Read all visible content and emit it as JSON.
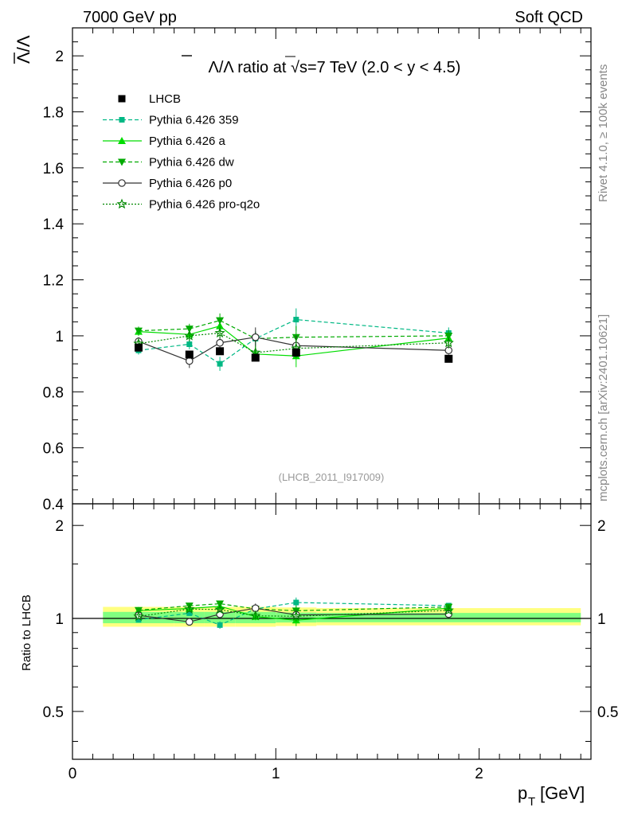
{
  "header": {
    "left": "7000 GeV pp",
    "right": "Soft QCD"
  },
  "side_labels": {
    "rivet": "Rivet 4.1.0, ≥ 100k events",
    "mcplots": "mcplots.cern.ch [arXiv:2401.10621]"
  },
  "colors": {
    "lhcb": "#000000",
    "p359": "#00b884",
    "pa": "#00dd00",
    "pdw": "#00aa00",
    "pp0": "#333333",
    "pq2o": "#008800",
    "band_outer": "#ffff80",
    "band_inner": "#80ff80"
  },
  "chart_data": [
    {
      "type": "line",
      "title": "Λ̅/Λ ratio at √s=7 TeV (2.0 < y < 4.5)",
      "title_parts": {
        "lambdabar": "Λ",
        "slash_lambda": "/Λ ratio at ",
        "sqrt": "√",
        "rest": "s=7 TeV (2.0 < y < 4.5)"
      },
      "ylabel": "Λ̅/Λ",
      "ylabel_parts": {
        "num": "Λ",
        "rest": "/Λ"
      },
      "xlabel": "p_T [GeV]",
      "xlim": [
        0,
        2.55
      ],
      "ylim": [
        0.4,
        2.1
      ],
      "yticks": [
        0.4,
        0.6,
        0.8,
        1,
        1.2,
        1.4,
        1.6,
        1.8,
        2
      ],
      "ytick_labels": [
        "0.4",
        "0.6",
        "0.8",
        "1",
        "1.2",
        "1.4",
        "1.6",
        "1.8",
        "2"
      ],
      "watermark": "(LHCB_2011_I917009)",
      "legend_position": "top-left",
      "series": [
        {
          "name": "LHCB",
          "style": "data",
          "x": [
            0.325,
            0.575,
            0.725,
            0.9,
            1.1,
            1.85
          ],
          "xerr_low": [
            0.175,
            0.075,
            0.075,
            0.1,
            0.1,
            0.65
          ],
          "xerr_high": [
            0.175,
            0.075,
            0.075,
            0.1,
            0.1,
            0.65
          ],
          "y": [
            0.958,
            0.933,
            0.945,
            0.922,
            0.94,
            0.918
          ]
        },
        {
          "name": "Pythia 6.426 359",
          "x": [
            0.325,
            0.575,
            0.725,
            0.9,
            1.1,
            1.85
          ],
          "y": [
            0.948,
            0.97,
            0.9,
            0.99,
            1.058,
            1.01
          ],
          "err": [
            0.015,
            0.018,
            0.025,
            0.025,
            0.04,
            0.02
          ]
        },
        {
          "name": "Pythia 6.426 a",
          "x": [
            0.325,
            0.575,
            0.725,
            0.9,
            1.1,
            1.85
          ],
          "y": [
            1.015,
            1.005,
            1.035,
            0.935,
            0.928,
            0.992
          ],
          "err": [
            0.015,
            0.018,
            0.025,
            0.025,
            0.04,
            0.02
          ]
        },
        {
          "name": "Pythia 6.426 dw",
          "x": [
            0.325,
            0.575,
            0.725,
            0.9,
            1.1,
            1.85
          ],
          "y": [
            1.018,
            1.025,
            1.055,
            0.99,
            0.995,
            1.0
          ],
          "err": [
            0.015,
            0.018,
            0.025,
            0.025,
            0.04,
            0.02
          ]
        },
        {
          "name": "Pythia 6.426 p0",
          "x": [
            0.325,
            0.575,
            0.725,
            0.9,
            1.1,
            1.85
          ],
          "y": [
            0.98,
            0.91,
            0.975,
            0.995,
            0.965,
            0.948
          ],
          "err": [
            0.015,
            0.025,
            0.02,
            0.035,
            0.035,
            0.015
          ]
        },
        {
          "name": "Pythia 6.426 pro-q2o",
          "x": [
            0.325,
            0.575,
            0.725,
            0.9,
            1.1,
            1.85
          ],
          "y": [
            0.972,
            1.0,
            1.01,
            0.94,
            0.955,
            0.975
          ],
          "err": [
            0.015,
            0.02,
            0.02,
            0.025,
            0.035,
            0.02
          ]
        }
      ]
    },
    {
      "type": "line",
      "title": "",
      "ylabel": "Ratio to LHCB",
      "xlabel": "p_T [GeV]",
      "xlim": [
        0,
        2.55
      ],
      "ylim": [
        0.35,
        2.35
      ],
      "yscale": "log",
      "yticks": [
        0.5,
        1,
        2
      ],
      "ytick_labels": [
        "0.5",
        "1",
        "2"
      ],
      "xticks": [
        0,
        1,
        2
      ],
      "xtick_labels": [
        "0",
        "1",
        "2"
      ],
      "reference": 1,
      "band_x_edges": [
        0.15,
        0.5,
        0.65,
        0.8,
        1.0,
        1.2,
        2.5
      ],
      "band_outer": [
        [
          0.94,
          1.09
        ],
        [
          0.94,
          1.09
        ],
        [
          0.94,
          1.09
        ],
        [
          0.94,
          1.09
        ],
        [
          0.945,
          1.085
        ],
        [
          0.95,
          1.08
        ]
      ],
      "band_inner": [
        [
          0.965,
          1.05
        ],
        [
          0.965,
          1.05
        ],
        [
          0.965,
          1.05
        ],
        [
          0.965,
          1.05
        ],
        [
          0.97,
          1.045
        ],
        [
          0.972,
          1.042
        ]
      ],
      "series": [
        {
          "name": "Pythia 6.426 359",
          "x": [
            0.325,
            0.575,
            0.725,
            0.9,
            1.1,
            1.85
          ],
          "y": [
            0.99,
            1.04,
            0.952,
            1.074,
            1.126,
            1.1
          ]
        },
        {
          "name": "Pythia 6.426 a",
          "x": [
            0.325,
            0.575,
            0.725,
            0.9,
            1.1,
            1.85
          ],
          "y": [
            1.06,
            1.077,
            1.095,
            1.014,
            0.987,
            1.08
          ]
        },
        {
          "name": "Pythia 6.426 dw",
          "x": [
            0.325,
            0.575,
            0.725,
            0.9,
            1.1,
            1.85
          ],
          "y": [
            1.063,
            1.099,
            1.116,
            1.074,
            1.059,
            1.089
          ]
        },
        {
          "name": "Pythia 6.426 p0",
          "x": [
            0.325,
            0.575,
            0.725,
            0.9,
            1.1,
            1.85
          ],
          "y": [
            1.023,
            0.975,
            1.032,
            1.079,
            1.027,
            1.033
          ]
        },
        {
          "name": "Pythia 6.426 pro-q2o",
          "x": [
            0.325,
            0.575,
            0.725,
            0.9,
            1.1,
            1.85
          ],
          "y": [
            1.015,
            1.072,
            1.069,
            1.02,
            1.016,
            1.062
          ]
        }
      ]
    }
  ]
}
